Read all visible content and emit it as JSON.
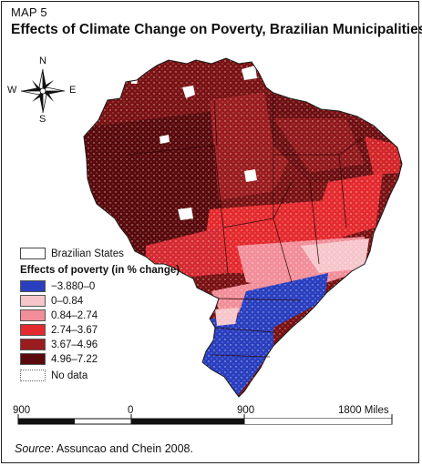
{
  "map": {
    "label": "MAP 5",
    "title": "Effects of Climate Change on Poverty, Brazilian Municipalities",
    "colors": {
      "c1": "#2a3fbf",
      "c2": "#f6c6cb",
      "c3": "#f28e99",
      "c4": "#e42a2e",
      "c5": "#9a1c1f",
      "c6": "#5a0a0c",
      "water": "#ffffff"
    }
  },
  "compass": {
    "n": "N",
    "s": "S",
    "e": "E",
    "w": "W"
  },
  "legend": {
    "states_label": "Brazilian States",
    "heading": "Effects of poverty (in % change)",
    "items": [
      {
        "label": "−3.880–0",
        "color": "#2a3fbf"
      },
      {
        "label": "0–0.84",
        "color": "#f6c6cb"
      },
      {
        "label": "0.84–2.74",
        "color": "#f28e99"
      },
      {
        "label": "2.74–3.67",
        "color": "#e42a2e"
      },
      {
        "label": "3.67–4.96",
        "color": "#9a1c1f"
      },
      {
        "label": "4.96–7.22",
        "color": "#5a0a0c"
      }
    ],
    "no_data_label": "No data"
  },
  "scale_bar": {
    "labels": [
      "900",
      "0",
      "900",
      "1800 Miles"
    ]
  },
  "source": {
    "prefix": "Source",
    "text": ": Assuncao and Chein 2008."
  }
}
